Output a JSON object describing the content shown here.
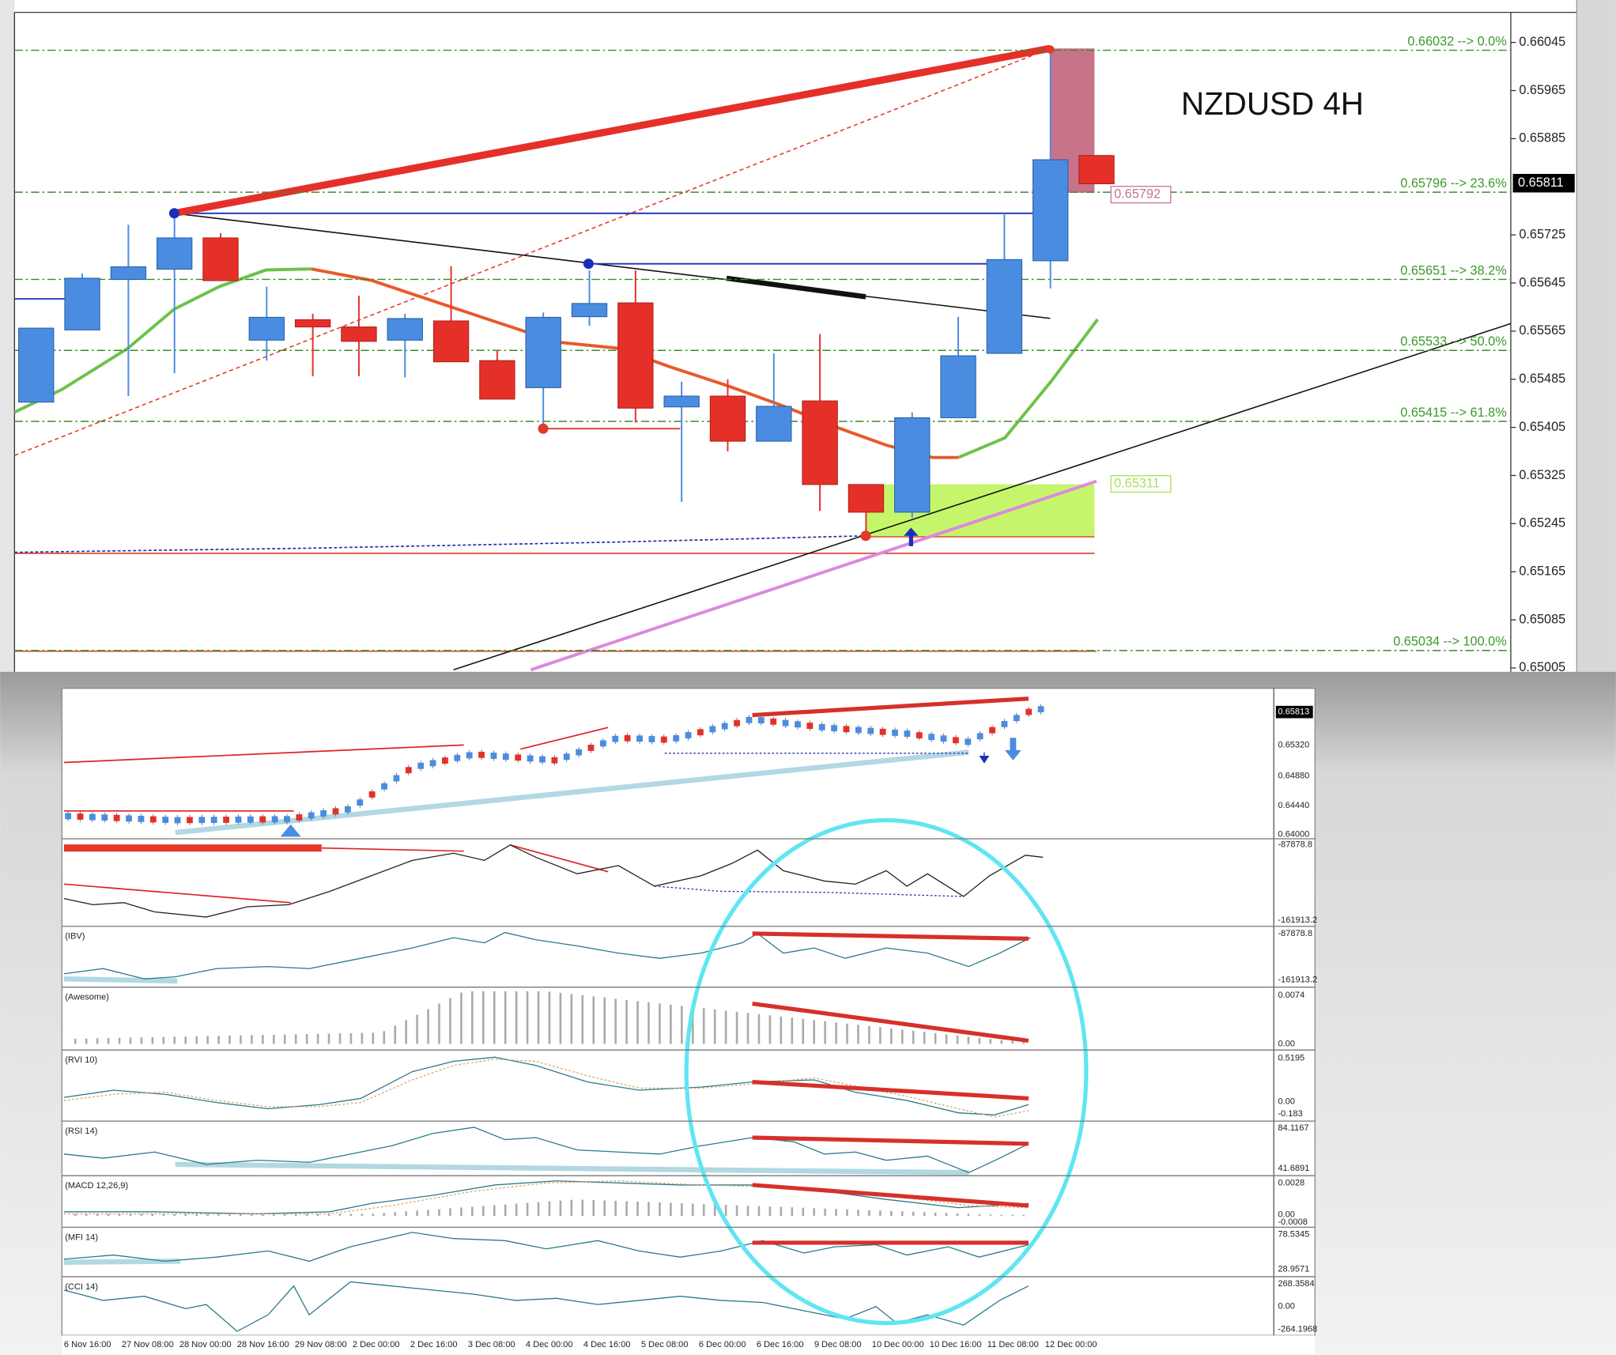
{
  "main": {
    "title": "NZDUSD 4H",
    "ylim": [
      0.65002,
      0.66095
    ],
    "price_axis": [
      0.66045,
      0.65965,
      0.65885,
      0.65725,
      0.65645,
      0.65565,
      0.65485,
      0.65405,
      0.65325,
      0.65245,
      0.65165,
      0.65085,
      0.65005
    ],
    "current_price": 0.65811,
    "fib_levels": [
      {
        "value": 0.66032,
        "label": "0.66032 --> 0.0%"
      },
      {
        "value": 0.65796,
        "label": "0.65796 --> 23.6%"
      },
      {
        "value": 0.65651,
        "label": "0.65651 --> 38.2%"
      },
      {
        "value": 0.65533,
        "label": "0.65533 --> 50.0%"
      },
      {
        "value": 0.65415,
        "label": "0.65415 --> 61.8%"
      },
      {
        "value": 0.65034,
        "label": "0.65034 --> 100.0%"
      }
    ],
    "price_tags": [
      0.65792,
      0.65311
    ],
    "candles": [
      {
        "open": 0.65447,
        "high": 0.6557,
        "low": 0.65447,
        "close": 0.6557
      },
      {
        "open": 0.65567,
        "high": 0.65661,
        "low": 0.65567,
        "close": 0.65653
      },
      {
        "open": 0.65651,
        "high": 0.65742,
        "low": 0.65457,
        "close": 0.65672
      },
      {
        "open": 0.65668,
        "high": 0.65761,
        "low": 0.65495,
        "close": 0.6572
      },
      {
        "open": 0.6572,
        "high": 0.65728,
        "low": 0.65649,
        "close": 0.65649
      },
      {
        "open": 0.6555,
        "high": 0.65639,
        "low": 0.65516,
        "close": 0.65588
      },
      {
        "open": 0.65584,
        "high": 0.65594,
        "low": 0.6549,
        "close": 0.65572
      },
      {
        "open": 0.65572,
        "high": 0.65624,
        "low": 0.6549,
        "close": 0.65548
      },
      {
        "open": 0.6555,
        "high": 0.65594,
        "low": 0.65488,
        "close": 0.65586
      },
      {
        "open": 0.65582,
        "high": 0.65673,
        "low": 0.65514,
        "close": 0.65514
      },
      {
        "open": 0.65516,
        "high": 0.65533,
        "low": 0.65452,
        "close": 0.65452
      },
      {
        "open": 0.65471,
        "high": 0.65596,
        "low": 0.65403,
        "close": 0.65588
      },
      {
        "open": 0.65589,
        "high": 0.65666,
        "low": 0.65574,
        "close": 0.65611
      },
      {
        "open": 0.65612,
        "high": 0.65666,
        "low": 0.65413,
        "close": 0.65437
      },
      {
        "open": 0.65439,
        "high": 0.65481,
        "low": 0.65281,
        "close": 0.65457
      },
      {
        "open": 0.65457,
        "high": 0.65485,
        "low": 0.65365,
        "close": 0.65382
      },
      {
        "open": 0.65382,
        "high": 0.65528,
        "low": 0.65382,
        "close": 0.6544
      },
      {
        "open": 0.65449,
        "high": 0.6556,
        "low": 0.65266,
        "close": 0.6531
      },
      {
        "open": 0.6531,
        "high": 0.6531,
        "low": 0.65224,
        "close": 0.65264
      },
      {
        "open": 0.65264,
        "high": 0.6543,
        "low": 0.65255,
        "close": 0.65421
      },
      {
        "open": 0.65421,
        "high": 0.65589,
        "low": 0.65421,
        "close": 0.65524
      },
      {
        "open": 0.65528,
        "high": 0.65761,
        "low": 0.65528,
        "close": 0.65684
      },
      {
        "open": 0.65682,
        "high": 0.66035,
        "low": 0.65636,
        "close": 0.6585
      },
      {
        "open": 0.65857,
        "high": 0.65857,
        "low": 0.6581,
        "close": 0.6581
      }
    ]
  },
  "lower": {
    "panels": [
      {
        "labels": [
          "0.65813",
          "0.65320",
          "0.64880",
          "0.64440",
          "0.64000"
        ]
      },
      {
        "labels": [
          "-87878.8",
          "-161913.2"
        ]
      },
      {
        "name": "(IBV)",
        "labels": [
          "-87878.8",
          "-161913.2"
        ]
      },
      {
        "name": "(Awesome)",
        "labels": [
          "0.0074",
          "0.00"
        ]
      },
      {
        "name": "(RVI 10)",
        "labels": [
          "0.5195",
          "0.00",
          "-0.183"
        ]
      },
      {
        "name": "(RSI 14)",
        "labels": [
          "84.1167",
          "41.6891"
        ]
      },
      {
        "name": "(MACD 12,26,9)",
        "labels": [
          "0.0028",
          "0.00",
          "-0.0008"
        ]
      },
      {
        "name": "(MFI 14)",
        "labels": [
          "78.5345",
          "28.9571"
        ]
      },
      {
        "name": "(CCI 14)",
        "labels": [
          "268.3584",
          "0.00",
          "-264.1968"
        ]
      }
    ],
    "dates": [
      "6 Nov 16:00",
      "27 Nov 08:00",
      "28 Nov 00:00",
      "28 Nov 16:00",
      "29 Nov 08:00",
      "2 Dec 00:00",
      "2 Dec 16:00",
      "3 Dec 08:00",
      "4 Dec 00:00",
      "4 Dec 16:00",
      "5 Dec 08:00",
      "6 Dec 00:00",
      "6 Dec 16:00",
      "9 Dec 08:00",
      "10 Dec 00:00",
      "10 Dec 16:00",
      "11 Dec 08:00",
      "12 Dec 00:00"
    ]
  }
}
